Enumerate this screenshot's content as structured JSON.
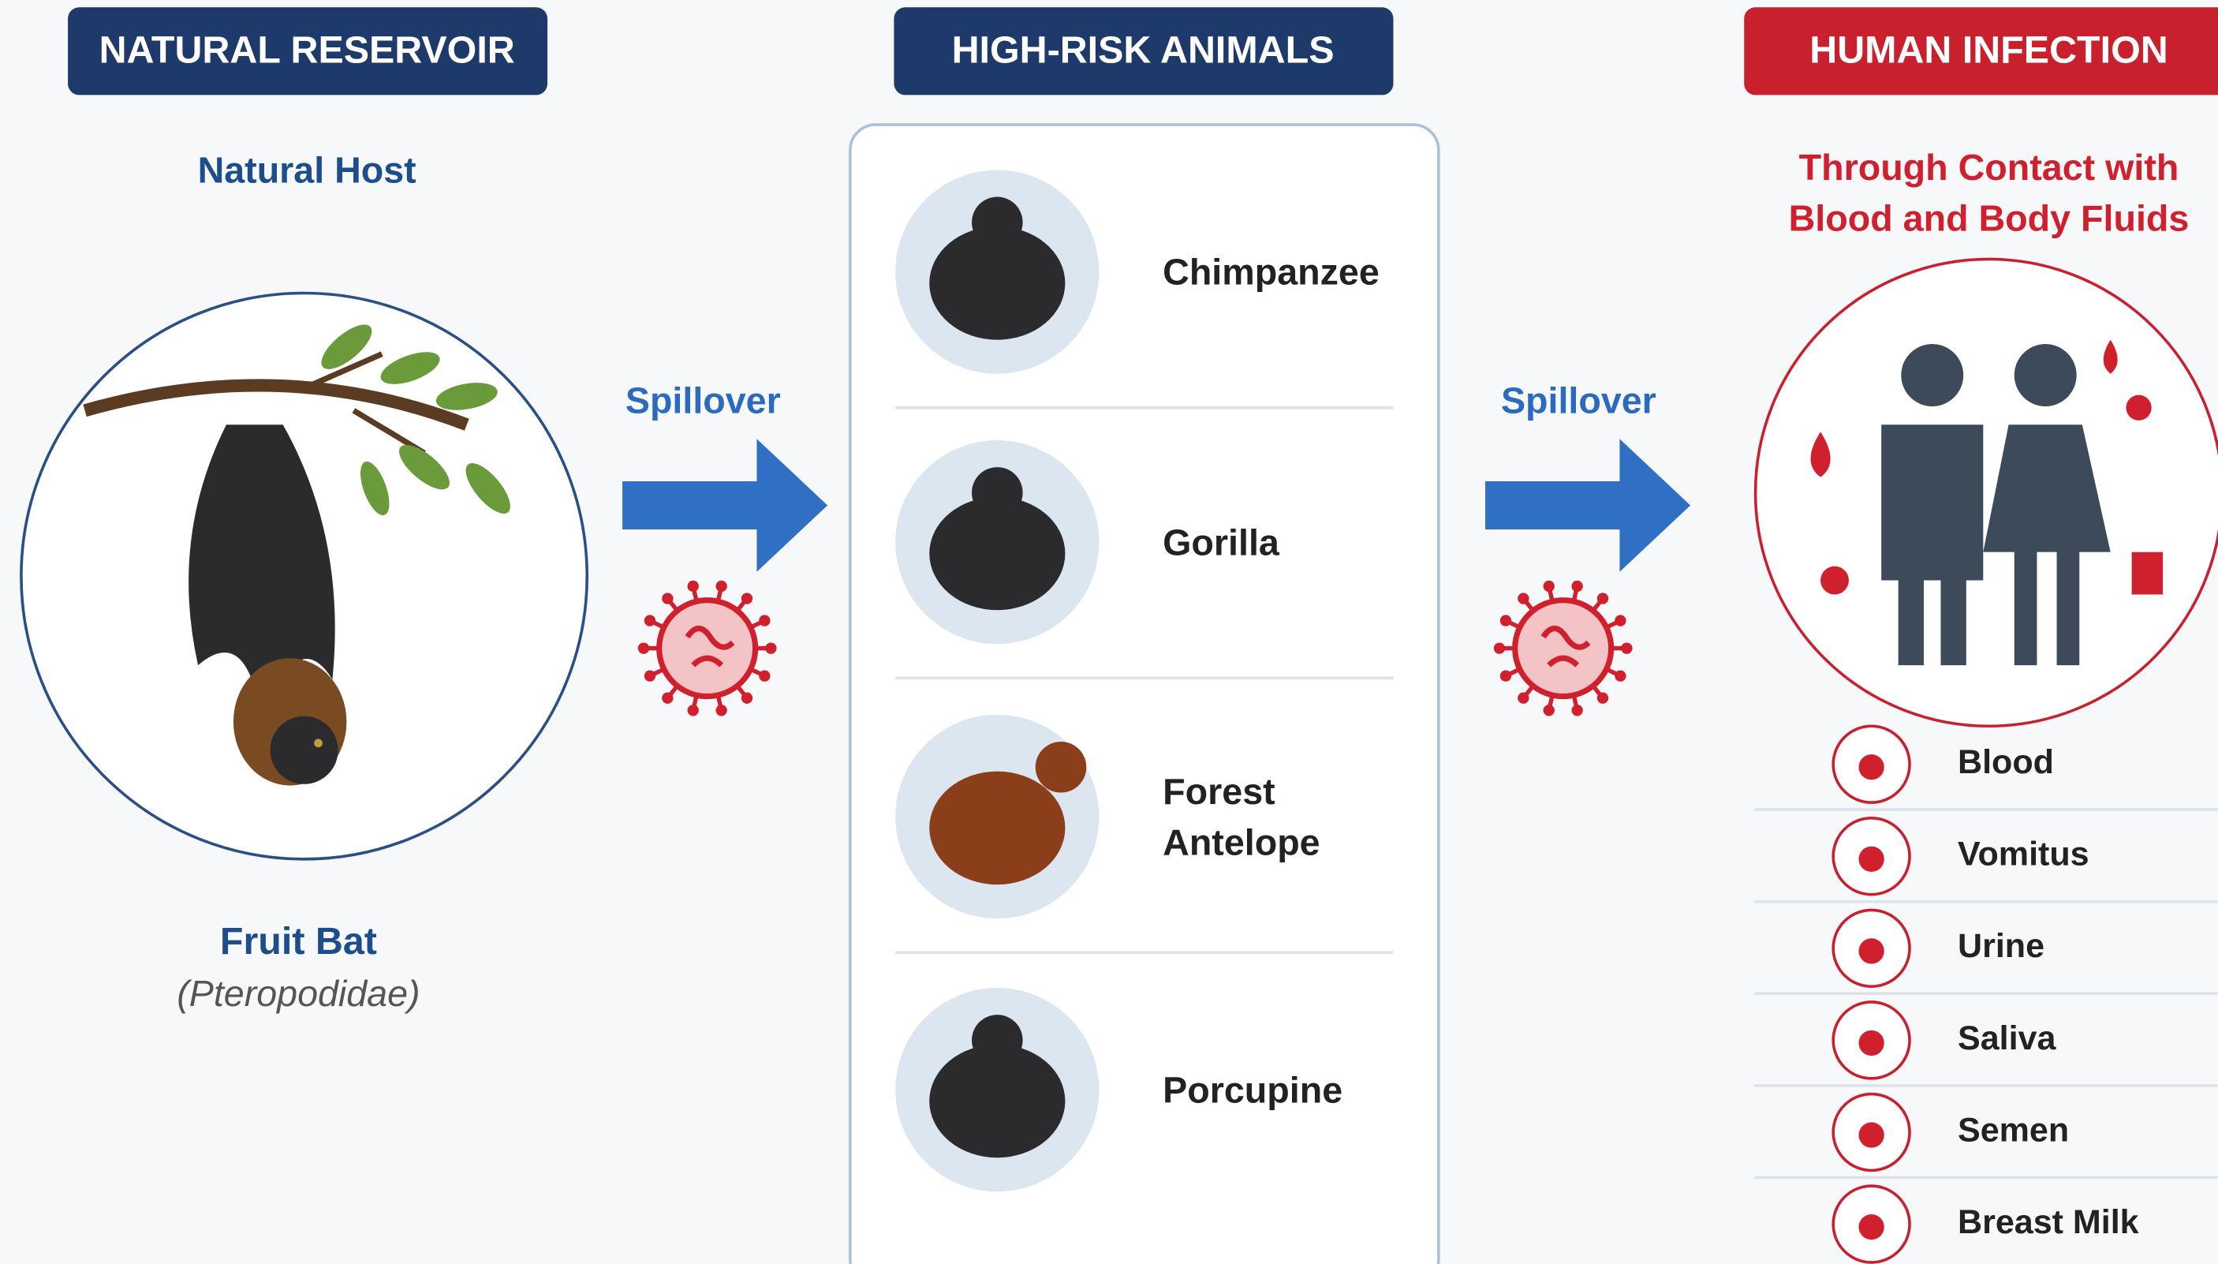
{
  "reservoir": {
    "header": "NATURAL RESERVOIR",
    "subtitle": "Natural Host",
    "name": "Fruit Bat",
    "scientific_name": "(Pteropodidae)"
  },
  "transitions": [
    "Spillover",
    "Spillover"
  ],
  "high_risk": {
    "header": "HIGH-RISK ANIMALS",
    "animals": [
      "Chimpanzee",
      "Gorilla",
      "Forest Antelope",
      "Porcupine"
    ]
  },
  "human": {
    "header": "HUMAN INFECTION",
    "subtitle": "Through Contact with Blood and Body Fluids",
    "fluids": [
      "Blood",
      "Vomitus",
      "Urine",
      "Saliva",
      "Semen",
      "Breast Milk"
    ]
  }
}
